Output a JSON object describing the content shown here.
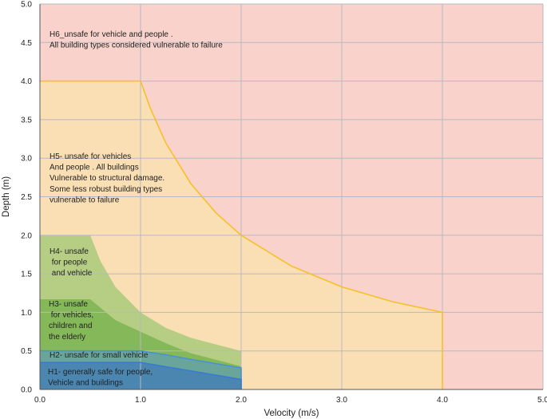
{
  "chart_data": {
    "type": "area",
    "xlabel": "Velocity (m/s)",
    "ylabel": "Depth (m)",
    "xlim": [
      0,
      5
    ],
    "ylim": [
      0,
      5
    ],
    "x_ticks": [
      "0.0",
      "1.0",
      "2.0",
      "3.0",
      "4.0",
      "5.0"
    ],
    "y_ticks": [
      "0.0",
      "0.5",
      "1.0",
      "1.5",
      "2.0",
      "2.5",
      "3.0",
      "3.5",
      "4.0",
      "4.5",
      "5.0"
    ],
    "grid": true,
    "regions": [
      {
        "id": "H6",
        "color": "#f8d2cb",
        "label": [
          "H6_unsafe for vehicle and people .",
          "All building types considered vulnerable to failure"
        ],
        "boundary": [
          [
            0,
            0
          ],
          [
            5,
            0
          ],
          [
            5,
            5
          ],
          [
            0,
            5
          ]
        ]
      },
      {
        "id": "H5",
        "color": "#fadfb5",
        "edge_color": "#f6c02a",
        "label": [
          "H5- unsafe for vehicles",
          "And people . All buildings",
          "Vulnerable to structural damage.",
          "Some less robust building types",
          "vulnerable to failure"
        ],
        "boundary": [
          [
            0,
            0
          ],
          [
            0,
            4
          ],
          [
            1,
            4
          ],
          [
            1.1,
            3.64
          ],
          [
            1.25,
            3.2
          ],
          [
            1.5,
            2.67
          ],
          [
            1.75,
            2.29
          ],
          [
            2,
            2
          ],
          [
            2.5,
            1.6
          ],
          [
            3,
            1.33
          ],
          [
            3.5,
            1.14
          ],
          [
            4,
            1
          ],
          [
            4,
            0
          ]
        ]
      },
      {
        "id": "H4",
        "color": "#b6cd84",
        "label": [
          "H4- unsafe",
          " for people",
          " and vehicle"
        ],
        "boundary": [
          [
            0,
            0
          ],
          [
            0,
            2
          ],
          [
            0.5,
            2
          ],
          [
            0.6,
            1.67
          ],
          [
            0.75,
            1.33
          ],
          [
            1,
            1
          ],
          [
            1.25,
            0.8
          ],
          [
            1.5,
            0.67
          ],
          [
            2,
            0.5
          ],
          [
            2,
            0
          ]
        ]
      },
      {
        "id": "H3",
        "color": "#84b858",
        "label": [
          "H3- unsafe",
          " for vehicles,",
          "children and",
          "the elderly"
        ],
        "boundary": [
          [
            0,
            0
          ],
          [
            0,
            1.17
          ],
          [
            0.5,
            1.17
          ],
          [
            0.75,
            0.9
          ],
          [
            1,
            0.75
          ],
          [
            1.25,
            0.6
          ],
          [
            1.5,
            0.47
          ],
          [
            2,
            0.3
          ],
          [
            2,
            0
          ]
        ]
      },
      {
        "id": "H2",
        "color": "#6aa59c",
        "edge_color": "#4a90d9",
        "label": [
          "H2- unsafe for small vehicle"
        ],
        "boundary": [
          [
            0,
            0
          ],
          [
            0,
            0.5
          ],
          [
            1,
            0.5
          ],
          [
            1.25,
            0.45
          ],
          [
            1.5,
            0.39
          ],
          [
            2,
            0.28
          ],
          [
            2,
            0
          ]
        ]
      },
      {
        "id": "H1",
        "color": "#4a86b0",
        "edge_color": "#3a7ad0",
        "label": [
          "H1- generally safe for people,",
          "Vehicle and buildings"
        ],
        "boundary": [
          [
            0,
            0
          ],
          [
            0,
            0.35
          ],
          [
            1,
            0.35
          ],
          [
            2,
            0.13
          ],
          [
            2,
            0
          ]
        ]
      }
    ]
  }
}
